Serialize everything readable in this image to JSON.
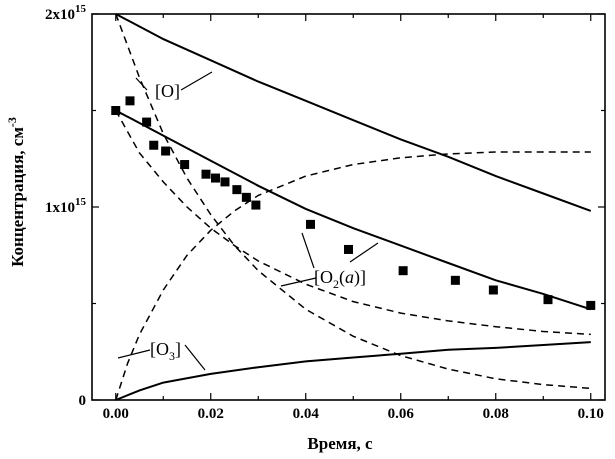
{
  "chart_data": {
    "type": "line",
    "xlabel": "Время, с",
    "ylabel_main": "Концентрация, см",
    "ylabel_sup": "-3",
    "xlim": [
      -0.005,
      0.103
    ],
    "ylim": [
      0,
      2000000000000000.0
    ],
    "x_ticks": [
      {
        "value": 0.0,
        "label": "0.00"
      },
      {
        "value": 0.02,
        "label": "0.02"
      },
      {
        "value": 0.04,
        "label": "0.04"
      },
      {
        "value": 0.06,
        "label": "0.06"
      },
      {
        "value": 0.08,
        "label": "0.08"
      },
      {
        "value": 0.1,
        "label": "0.10"
      }
    ],
    "y_ticks": [
      {
        "value": 0,
        "base": "0",
        "sup": ""
      },
      {
        "value": 1000000000000000.0,
        "base": "1x10",
        "sup": "15"
      },
      {
        "value": 2000000000000000.0,
        "base": "2x10",
        "sup": "15"
      }
    ],
    "series": [
      {
        "style": "solid",
        "x": [
          0,
          0.01,
          0.02,
          0.03,
          0.04,
          0.05,
          0.06,
          0.07,
          0.08,
          0.09,
          0.1
        ],
        "values": [
          2000000000000000.0,
          1870000000000000.0,
          1760000000000000.0,
          1650000000000000.0,
          1550000000000000.0,
          1450000000000000.0,
          1350000000000000.0,
          1260000000000000.0,
          1160000000000000.0,
          1070000000000000.0,
          980000000000000.0
        ]
      },
      {
        "style": "solid",
        "x": [
          0,
          0.01,
          0.02,
          0.03,
          0.04,
          0.05,
          0.06,
          0.07,
          0.08,
          0.09,
          0.1
        ],
        "values": [
          1500000000000000.0,
          1370000000000000.0,
          1240000000000000.0,
          1110000000000000.0,
          990000000000000.0,
          890000000000000.0,
          800000000000000.0,
          710000000000000.0,
          620000000000000.0,
          550000000000000.0,
          470000000000000.0
        ]
      },
      {
        "style": "solid",
        "x": [
          0,
          0.005,
          0.01,
          0.02,
          0.03,
          0.04,
          0.05,
          0.06,
          0.07,
          0.08,
          0.09,
          0.1
        ],
        "values": [
          0,
          50000000000000.0,
          90000000000000.0,
          135000000000000.0,
          170000000000000.0,
          200000000000000.0,
          220000000000000.0,
          240000000000000.0,
          260000000000000.0,
          270000000000000.0,
          285000000000000.0,
          300000000000000.0
        ]
      },
      {
        "style": "dashed",
        "x": [
          0,
          0.005,
          0.01,
          0.015,
          0.02,
          0.025,
          0.03,
          0.04,
          0.05,
          0.06,
          0.07,
          0.08,
          0.09,
          0.1
        ],
        "values": [
          2000000000000000.0,
          1670000000000000.0,
          1380000000000000.0,
          1150000000000000.0,
          960000000000000.0,
          800000000000000.0,
          670000000000000.0,
          470000000000000.0,
          330000000000000.0,
          230000000000000.0,
          160000000000000.0,
          110000000000000.0,
          80000000000000.0,
          60000000000000.0
        ]
      },
      {
        "style": "dashed",
        "x": [
          0,
          0.0025,
          0.005,
          0.01,
          0.015,
          0.02,
          0.025,
          0.03,
          0.04,
          0.05,
          0.06,
          0.07,
          0.08,
          0.09,
          0.1
        ],
        "values": [
          1500000000000000.0,
          1390000000000000.0,
          1280000000000000.0,
          1130000000000000.0,
          1000000000000000.0,
          890000000000000.0,
          800000000000000.0,
          720000000000000.0,
          600000000000000.0,
          510000000000000.0,
          450000000000000.0,
          410000000000000.0,
          380000000000000.0,
          355000000000000.0,
          340000000000000.0
        ]
      },
      {
        "style": "dashed",
        "x": [
          0,
          0.0025,
          0.005,
          0.01,
          0.015,
          0.02,
          0.025,
          0.03,
          0.04,
          0.05,
          0.06,
          0.07,
          0.08,
          0.09,
          0.1
        ],
        "values": [
          0,
          190000000000000.0,
          340000000000000.0,
          570000000000000.0,
          750000000000000.0,
          880000000000000.0,
          980000000000000.0,
          1060000000000000.0,
          1160000000000000.0,
          1220000000000000.0,
          1255000000000000.0,
          1275000000000000.0,
          1285000000000000.0,
          1285000000000000.0,
          1285000000000000.0
        ]
      },
      {
        "style": "markers",
        "x": [
          0.0,
          0.003,
          0.0065,
          0.008,
          0.0105,
          0.0145,
          0.019,
          0.021,
          0.023,
          0.0255,
          0.0275,
          0.0295,
          0.041,
          0.049,
          0.0605,
          0.0715,
          0.0795,
          0.091,
          0.1
        ],
        "values": [
          1500000000000000.0,
          1550000000000000.0,
          1440000000000000.0,
          1320000000000000.0,
          1290000000000000.0,
          1220000000000000.0,
          1170000000000000.0,
          1150000000000000.0,
          1130000000000000.0,
          1090000000000000.0,
          1050000000000000.0,
          1010000000000000.0,
          910000000000000.0,
          780000000000000.0,
          670000000000000.0,
          620000000000000.0,
          570000000000000.0,
          520000000000000.0,
          490000000000000.0
        ]
      }
    ],
    "annotations": [
      {
        "parts": [
          {
            "t": "[O]"
          }
        ]
      },
      {
        "parts": [
          {
            "t": "[O"
          },
          {
            "t": "2",
            "sub": true
          },
          {
            "t": "("
          },
          {
            "t": "a",
            "italic": true
          },
          {
            "t": ")]"
          }
        ]
      },
      {
        "parts": [
          {
            "t": "[O"
          },
          {
            "t": "3",
            "sub": true
          },
          {
            "t": "]"
          }
        ]
      }
    ]
  }
}
